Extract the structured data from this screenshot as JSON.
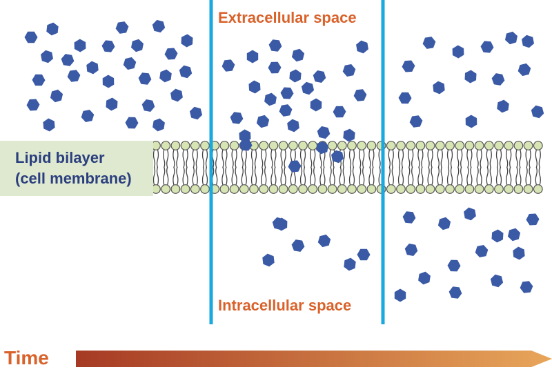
{
  "labels": {
    "membrane_line1": "Lipid bilayer",
    "membrane_line2": "(cell membrane)",
    "extracellular": "Extracellular space",
    "intracellular": "Intracellular space",
    "time": "Time"
  },
  "panels": [
    {
      "name": "panel-1",
      "molecules_above": 29,
      "molecules_in_membrane": 0,
      "molecules_below": 0
    },
    {
      "name": "panel-2",
      "molecules_above": 22,
      "molecules_in_membrane": 4,
      "molecules_below": 7
    },
    {
      "name": "panel-3",
      "molecules_above": 15,
      "molecules_in_membrane": 0,
      "molecules_below": 15
    }
  ],
  "colors": {
    "molecule": "#3b5aa6",
    "divider": "#19a8e0",
    "lipid_head": "#d7e4b3",
    "lipid_outline": "#555555",
    "label_orange": "#d9622b",
    "label_blue": "#2b3f7e",
    "membrane_label_bg": "#dfe9d0",
    "time_arrow_start": "#a63a24",
    "time_arrow_end": "#e8a65a"
  }
}
